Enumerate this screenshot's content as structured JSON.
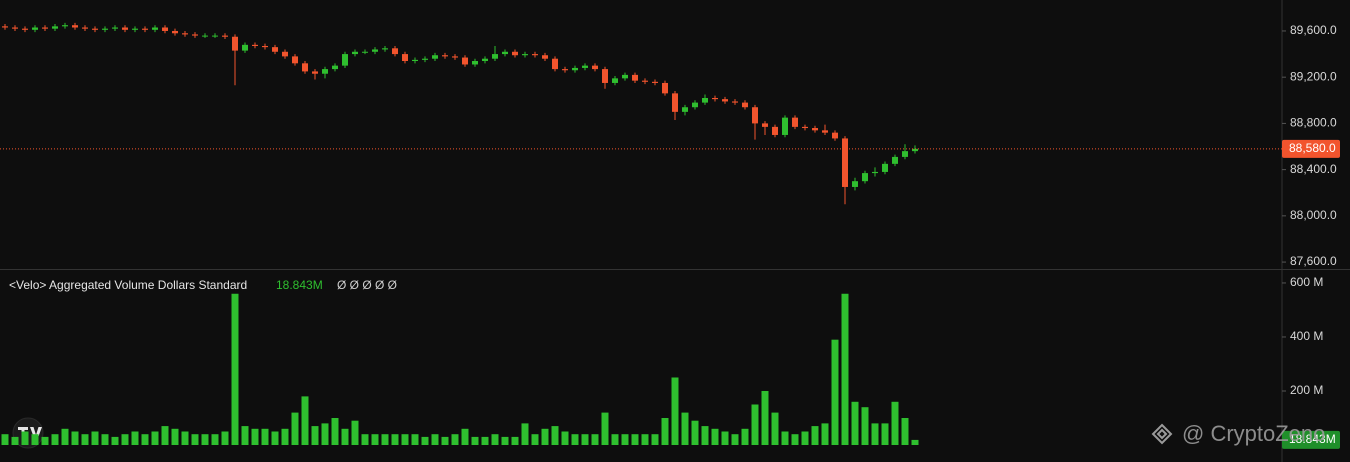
{
  "chart_data": [
    {
      "type": "candlestick",
      "up_color": "#2fbf2f",
      "down_color": "#f2542d",
      "open": [
        89640,
        89630,
        89620,
        89610,
        89630,
        89620,
        89640,
        89650,
        89630,
        89620,
        89610,
        89620,
        89630,
        89610,
        89620,
        89610,
        89630,
        89600,
        89580,
        89570,
        89560,
        89560,
        89560,
        89550,
        89430,
        89480,
        89470,
        89460,
        89420,
        89380,
        89320,
        89250,
        89230,
        89270,
        89300,
        89400,
        89420,
        89420,
        89440,
        89450,
        89400,
        89340,
        89350,
        89360,
        89390,
        89380,
        89370,
        89310,
        89340,
        89360,
        89400,
        89420,
        89390,
        89400,
        89390,
        89360,
        89270,
        89260,
        89280,
        89300,
        89270,
        89150,
        89190,
        89220,
        89170,
        89160,
        89150,
        89060,
        88900,
        88940,
        88980,
        89020,
        89010,
        88990,
        88980,
        88940,
        88800,
        88770,
        88700,
        88850,
        88770,
        88760,
        88740,
        88720,
        88670,
        88250,
        88300,
        88370,
        88380,
        88450,
        88510,
        88560
      ],
      "high": [
        89660,
        89650,
        89640,
        89650,
        89650,
        89660,
        89670,
        89670,
        89650,
        89640,
        89640,
        89650,
        89650,
        89640,
        89640,
        89650,
        89650,
        89620,
        89600,
        89590,
        89580,
        89580,
        89580,
        89570,
        89500,
        89500,
        89490,
        89480,
        89440,
        89400,
        89340,
        89270,
        89290,
        89320,
        89420,
        89440,
        89440,
        89460,
        89470,
        89470,
        89420,
        89370,
        89380,
        89410,
        89410,
        89400,
        89390,
        89360,
        89380,
        89470,
        89440,
        89440,
        89420,
        89420,
        89410,
        89380,
        89290,
        89300,
        89320,
        89320,
        89290,
        89210,
        89240,
        89240,
        89190,
        89180,
        89170,
        89080,
        88960,
        89000,
        89050,
        89040,
        89030,
        89010,
        89000,
        88960,
        88820,
        88790,
        88870,
        88870,
        88790,
        88780,
        88790,
        88740,
        88690,
        88330,
        88390,
        88420,
        88470,
        88530,
        88620,
        88610
      ],
      "low": [
        89610,
        89600,
        89590,
        89590,
        89600,
        89600,
        89620,
        89610,
        89600,
        89590,
        89590,
        89600,
        89590,
        89590,
        89590,
        89590,
        89580,
        89560,
        89550,
        89540,
        89540,
        89540,
        89530,
        89130,
        89410,
        89450,
        89440,
        89400,
        89360,
        89300,
        89230,
        89180,
        89190,
        89250,
        89280,
        89380,
        89400,
        89400,
        89420,
        89380,
        89320,
        89320,
        89330,
        89340,
        89360,
        89350,
        89290,
        89290,
        89320,
        89340,
        89380,
        89370,
        89370,
        89370,
        89340,
        89250,
        89240,
        89240,
        89260,
        89250,
        89100,
        89130,
        89170,
        89150,
        89140,
        89130,
        89040,
        88830,
        88870,
        88920,
        88960,
        88990,
        88970,
        88960,
        88920,
        88660,
        88700,
        88680,
        88680,
        88750,
        88740,
        88720,
        88700,
        88650,
        88100,
        88220,
        88280,
        88340,
        88360,
        88430,
        88490,
        88540
      ],
      "close": [
        89630,
        89620,
        89610,
        89630,
        89620,
        89640,
        89650,
        89630,
        89620,
        89610,
        89620,
        89630,
        89610,
        89620,
        89610,
        89630,
        89600,
        89580,
        89570,
        89560,
        89560,
        89560,
        89550,
        89430,
        89480,
        89470,
        89460,
        89420,
        89380,
        89320,
        89250,
        89230,
        89270,
        89300,
        89400,
        89420,
        89420,
        89440,
        89450,
        89400,
        89340,
        89350,
        89360,
        89390,
        89380,
        89370,
        89310,
        89340,
        89360,
        89400,
        89420,
        89390,
        89400,
        89390,
        89360,
        89270,
        89260,
        89280,
        89300,
        89270,
        89150,
        89190,
        89220,
        89170,
        89160,
        89150,
        89060,
        88900,
        88940,
        88980,
        89020,
        89010,
        88990,
        88980,
        88940,
        88800,
        88770,
        88700,
        88850,
        88770,
        88760,
        88740,
        88720,
        88670,
        88250,
        88300,
        88370,
        88380,
        88450,
        88510,
        88560,
        88580
      ],
      "ylim": [
        87540,
        89868
      ],
      "yticks": [
        {
          "value": 87600,
          "label": "87,600.0"
        },
        {
          "value": 88000,
          "label": "88,000.0"
        },
        {
          "value": 88400,
          "label": "88,400.0"
        },
        {
          "value": 88800,
          "label": "88,800.0"
        },
        {
          "value": 89200,
          "label": "89,200.0"
        },
        {
          "value": 89600,
          "label": "89,600.0"
        }
      ],
      "current_price": {
        "value": 88580,
        "label": "88,580.0"
      }
    },
    {
      "type": "bar",
      "title": "<Velo> Aggregated Volume Dollars Standard",
      "current_value": {
        "value": 18.843,
        "label": "18.843M"
      },
      "indicators": "Ø Ø Ø Ø Ø",
      "color": "#2fbf2f",
      "values": [
        40,
        30,
        50,
        40,
        30,
        40,
        60,
        50,
        40,
        50,
        40,
        30,
        40,
        50,
        40,
        50,
        70,
        60,
        50,
        40,
        40,
        40,
        50,
        560,
        70,
        60,
        60,
        50,
        60,
        120,
        180,
        70,
        80,
        100,
        60,
        90,
        40,
        40,
        40,
        40,
        40,
        40,
        30,
        40,
        30,
        40,
        60,
        30,
        30,
        40,
        30,
        30,
        80,
        40,
        60,
        70,
        50,
        40,
        40,
        40,
        120,
        40,
        40,
        40,
        40,
        40,
        100,
        250,
        120,
        90,
        70,
        60,
        50,
        40,
        60,
        150,
        200,
        120,
        50,
        40,
        50,
        70,
        80,
        390,
        560,
        160,
        140,
        80,
        80,
        160,
        100,
        18.843
      ],
      "ylim": [
        0,
        648
      ],
      "yticks": [
        {
          "value": 200,
          "label": "200 M"
        },
        {
          "value": 400,
          "label": "400 M"
        },
        {
          "value": 600,
          "label": "600 M"
        }
      ]
    },
    {
      "type": "watermark",
      "text": "@ CryptoZeno"
    }
  ]
}
